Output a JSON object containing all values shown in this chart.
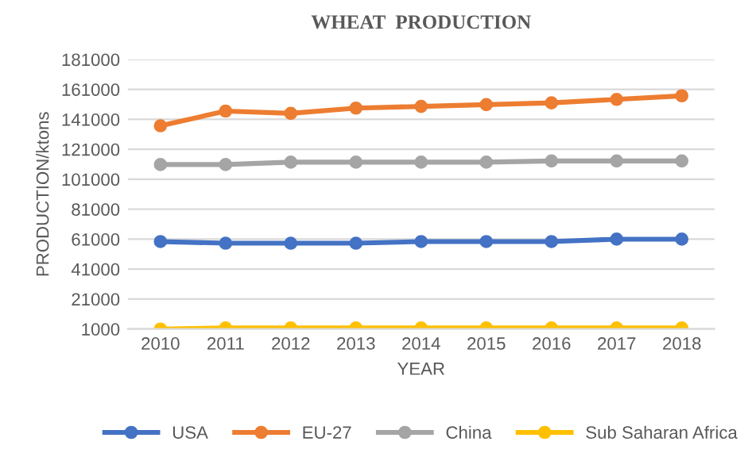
{
  "chart_data": {
    "type": "line",
    "title": "WHEAT  PRODUCTION",
    "xlabel": "YEAR",
    "ylabel": "PRODUCTION/ktons",
    "categories": [
      "2010",
      "2011",
      "2012",
      "2013",
      "2014",
      "2015",
      "2016",
      "2017",
      "2018"
    ],
    "series": [
      {
        "name": "USA",
        "color": "#4472c4",
        "values": [
          59400,
          58300,
          58300,
          58300,
          59400,
          59400,
          59400,
          61000,
          61000
        ]
      },
      {
        "name": "EU-27",
        "color": "#ed7d31",
        "values": [
          136700,
          146500,
          145000,
          148500,
          149600,
          150800,
          152000,
          154300,
          156700
        ]
      },
      {
        "name": "China",
        "color": "#a5a5a5",
        "values": [
          110800,
          110800,
          112400,
          112400,
          112400,
          112400,
          113200,
          113200,
          113200
        ]
      },
      {
        "name": "Sub Saharan Africa",
        "color": "#ffc000",
        "values": [
          1000,
          1700,
          1700,
          1700,
          1700,
          1700,
          1700,
          1700,
          1700
        ]
      }
    ],
    "ylim": [
      1000,
      181000
    ],
    "yticks": [
      1000,
      21000,
      41000,
      61000,
      81000,
      101000,
      121000,
      141000,
      161000,
      181000
    ],
    "grid": "y",
    "legend": "bottom",
    "marker": "circle",
    "line_style": "solid"
  }
}
